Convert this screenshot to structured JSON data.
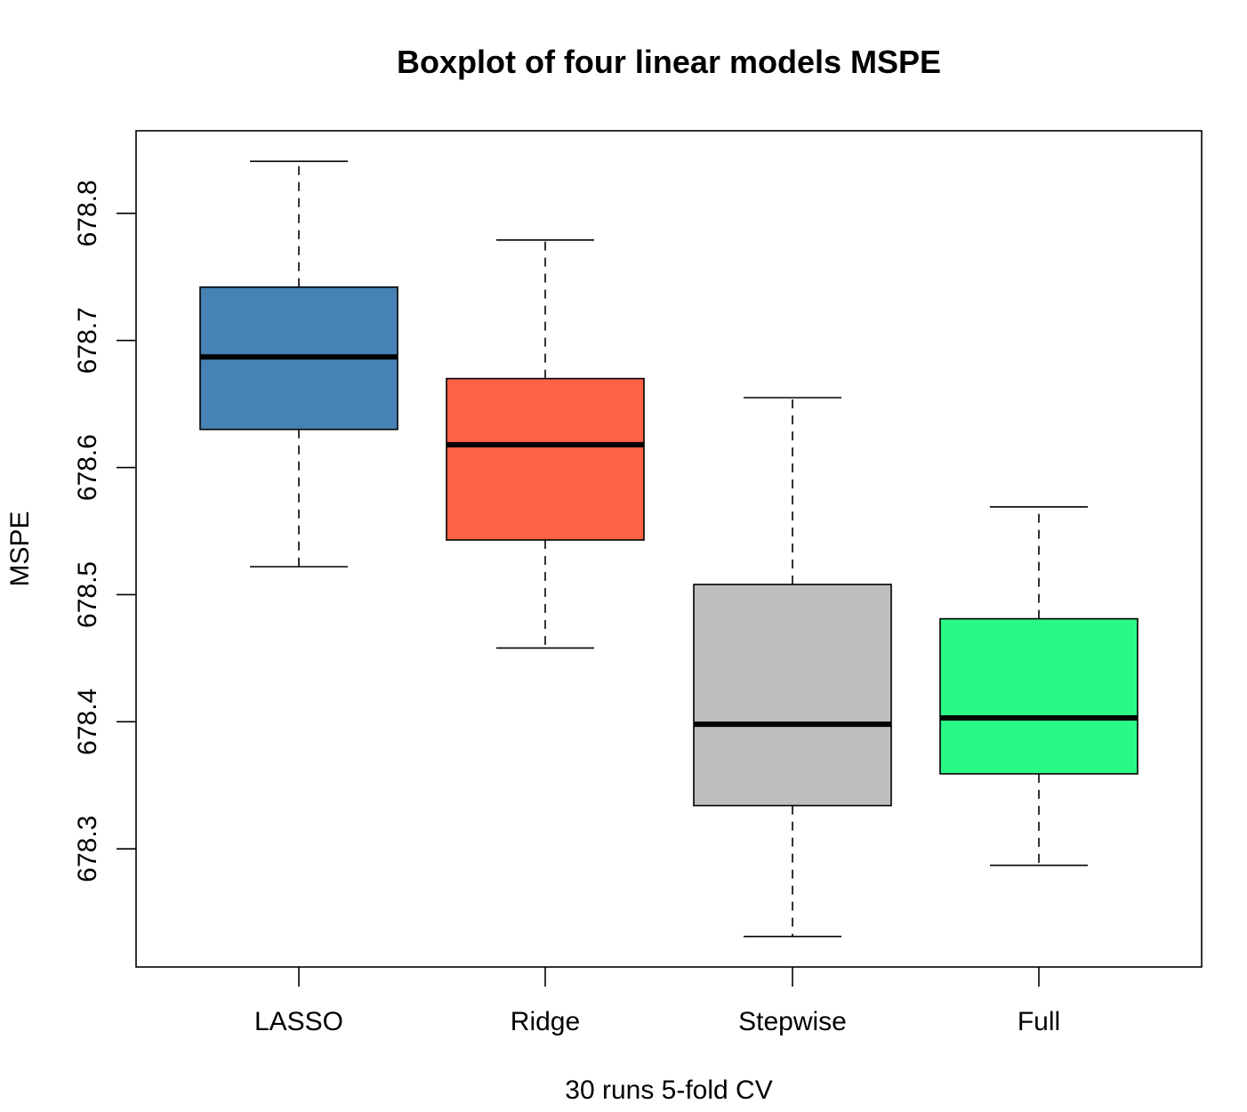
{
  "chart_data": {
    "type": "boxplot",
    "title": "Boxplot of four linear models MSPE",
    "xlabel": "30 runs 5-fold CV",
    "ylabel": "MSPE",
    "ylim": [
      678.207,
      678.865
    ],
    "yticks": [
      678.3,
      678.4,
      678.5,
      678.6,
      678.7,
      678.8
    ],
    "ytick_labels": [
      "678.3",
      "678.4",
      "678.5",
      "678.6",
      "678.7",
      "678.8"
    ],
    "grid": false,
    "legend": false,
    "categories": [
      "LASSO",
      "Ridge",
      "Stepwise",
      "Full"
    ],
    "colors": [
      "#4682B4",
      "#FF6347",
      "#BEBEBE",
      "#2BF986"
    ],
    "boxes": [
      {
        "label": "LASSO",
        "whisker_low": 678.522,
        "q1": 678.63,
        "median": 678.687,
        "q3": 678.742,
        "whisker_high": 678.841
      },
      {
        "label": "Ridge",
        "whisker_low": 678.458,
        "q1": 678.543,
        "median": 678.618,
        "q3": 678.67,
        "whisker_high": 678.779
      },
      {
        "label": "Stepwise",
        "whisker_low": 678.231,
        "q1": 678.334,
        "median": 678.398,
        "q3": 678.508,
        "whisker_high": 678.655
      },
      {
        "label": "Full",
        "whisker_low": 678.287,
        "q1": 678.359,
        "median": 678.403,
        "q3": 678.481,
        "whisker_high": 678.569
      }
    ]
  }
}
